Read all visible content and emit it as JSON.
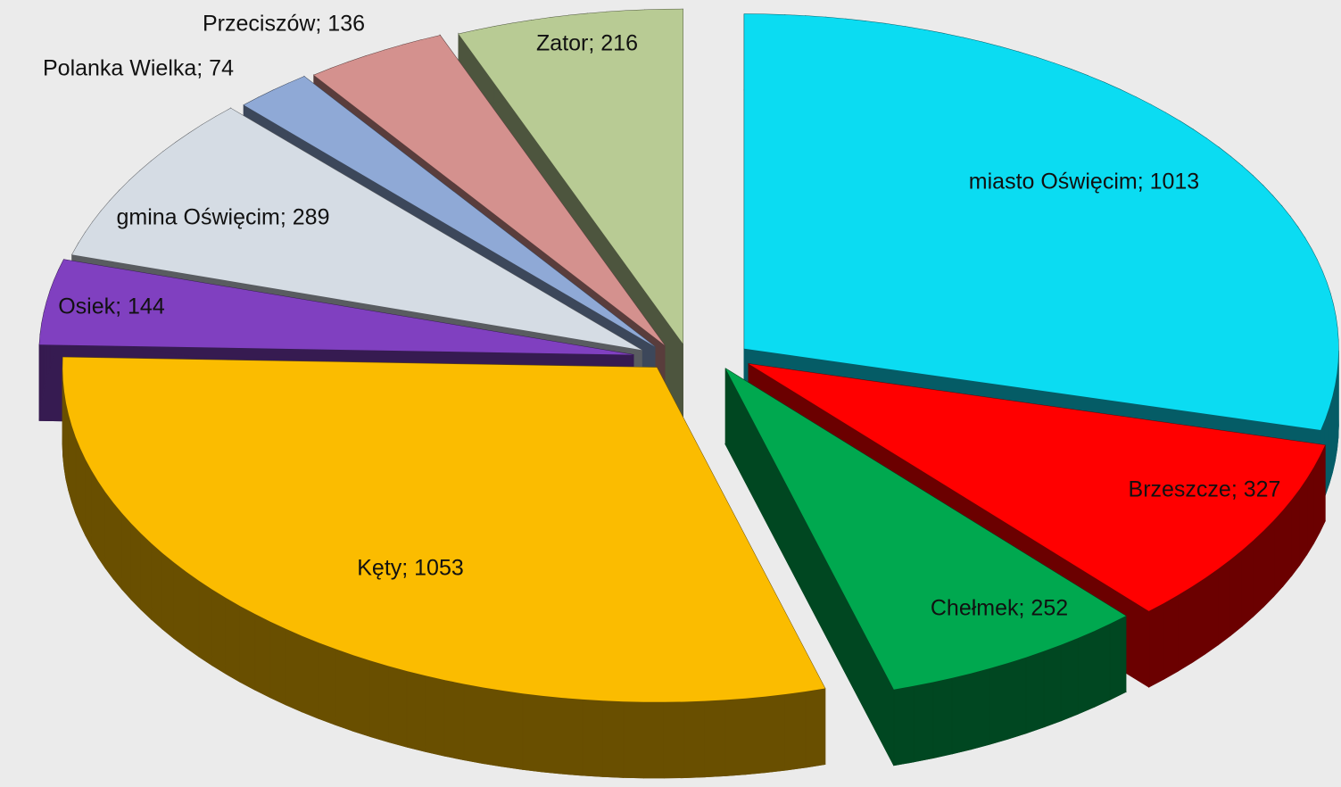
{
  "chart_data": {
    "type": "pie",
    "values": [
      1013,
      327,
      252,
      1053,
      144,
      289,
      74,
      136,
      216
    ],
    "value_labels": [
      "miasto Oświęcim; 1013",
      "Brzeszcze;  327",
      "Chełmek; 252",
      "Kęty; 1053",
      "Osiek; 144",
      "gmina  Oświęcim; 289",
      "Polanka Wielka; 74",
      "Przeciszów; 136",
      "Zator; 216"
    ],
    "colors": [
      "#0bdcf2",
      "#ff0000",
      "#00a84f",
      "#fbbc00",
      "#8040c0",
      "#d5dce4",
      "#8fa9d6",
      "#d4918e",
      "#b8cb94"
    ]
  }
}
